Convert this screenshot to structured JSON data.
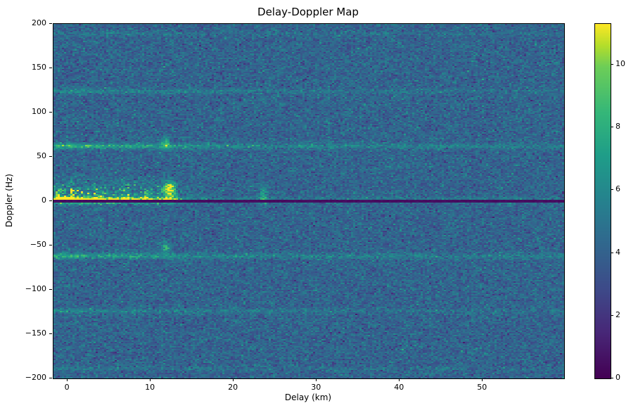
{
  "figure": {
    "background": "#ffffff"
  },
  "chart_data": {
    "type": "heatmap",
    "title": "Delay-Doppler Map",
    "xlabel": "Delay (km)",
    "ylabel": "Doppler (Hz)",
    "colormap": "viridis",
    "x_range": [
      -1.7,
      59.8
    ],
    "y_range": [
      -200,
      200
    ],
    "x_ticks": [
      0,
      10,
      20,
      30,
      40,
      50
    ],
    "y_ticks": [
      -200,
      -150,
      -100,
      -50,
      0,
      50,
      100,
      150,
      200
    ],
    "value_range": [
      0,
      11.3
    ],
    "colorbar_ticks": [
      0,
      2,
      4,
      6,
      8,
      10
    ],
    "legend": "none",
    "grid": false,
    "features": {
      "background_noise": {
        "mean": 4.1,
        "std": 0.8,
        "speckle_prob": 0.03,
        "speckle_amp": 1.8
      },
      "zero_doppler_null": {
        "doppler_hz": 0,
        "half_width_hz": 0.9,
        "value": 0.3
      },
      "clutter_ridge": {
        "doppler_center_hz": 1.2,
        "sigma_hz": 2.2,
        "delay_end_km": 12.5,
        "amplitude": 6.5,
        "near_zero_boost": 3.5
      },
      "clutter_band": {
        "doppler_center_hz": 8,
        "sigma_hz": 9,
        "delay_end_km": 10,
        "tail_km": 3,
        "amplitude": 5.5
      },
      "harmonic_lines": [
        {
          "doppler_hz": 62,
          "sigma_hz": 1.7,
          "amp_near": 3.4,
          "amp_far": 1.0,
          "fade_km": 16
        },
        {
          "doppler_hz": -62,
          "sigma_hz": 1.7,
          "amp_near": 3.0,
          "amp_far": 0.9,
          "fade_km": 16
        },
        {
          "doppler_hz": 124,
          "sigma_hz": 1.5,
          "amp_near": 1.7,
          "amp_far": 0.55,
          "fade_km": 16
        },
        {
          "doppler_hz": -124,
          "sigma_hz": 1.5,
          "amp_near": 1.5,
          "amp_far": 0.5,
          "fade_km": 16
        },
        {
          "doppler_hz": 189,
          "sigma_hz": 1.4,
          "amp_near": 0.9,
          "amp_far": 0.35,
          "fade_km": 16
        },
        {
          "doppler_hz": -189,
          "sigma_hz": 1.4,
          "amp_near": 0.8,
          "amp_far": 0.3,
          "fade_km": 16
        },
        {
          "doppler_hz": 2,
          "sigma_hz": 1.6,
          "amp_near": 1.4,
          "amp_far": 0.7,
          "fade_km": 30
        }
      ],
      "blobs": [
        {
          "delay_km": 12.2,
          "doppler_hz": 13,
          "sigma_delay_km": 0.5,
          "sigma_doppler_hz": 6,
          "amplitude": 8.0
        },
        {
          "delay_km": 11.8,
          "doppler_hz": 66,
          "sigma_delay_km": 0.4,
          "sigma_doppler_hz": 5,
          "amplitude": 3.5
        },
        {
          "delay_km": 11.8,
          "doppler_hz": -52,
          "sigma_delay_km": 0.4,
          "sigma_doppler_hz": 5,
          "amplitude": 3.0
        },
        {
          "delay_km": 23.6,
          "doppler_hz": 6,
          "sigma_delay_km": 0.35,
          "sigma_doppler_hz": 7,
          "amplitude": 3.5
        }
      ]
    }
  }
}
